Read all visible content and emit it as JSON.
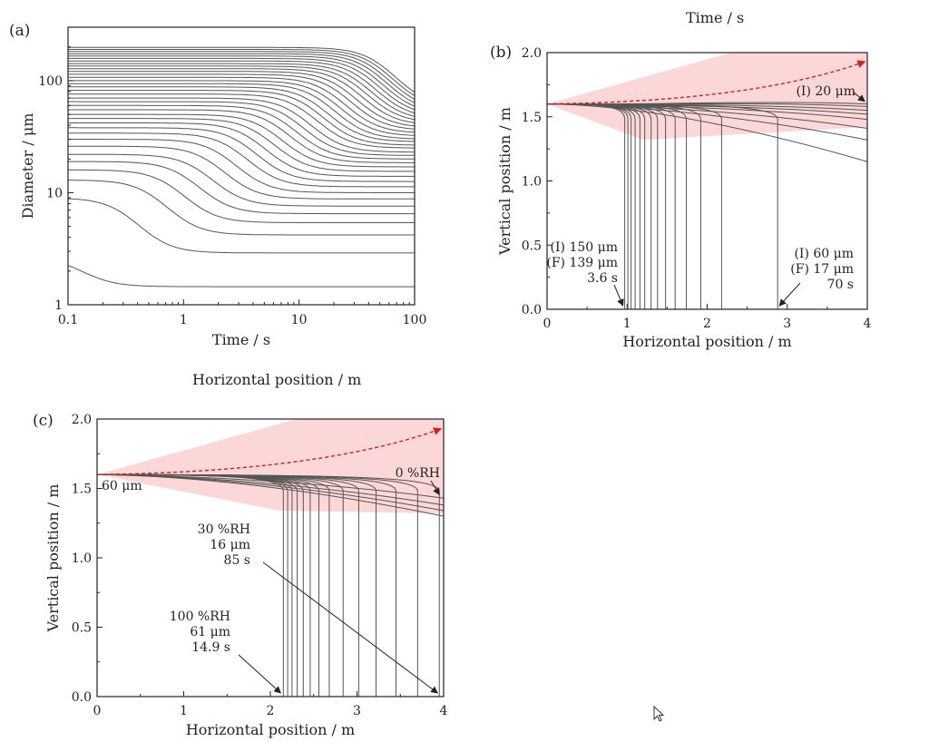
{
  "floating_labels": {
    "time": "Time / s",
    "horizontal": "Horizontal position / m"
  },
  "chart_data": [
    {
      "panel": "(a)",
      "type": "line",
      "xlabel": "Time / s",
      "ylabel": "Diameter / μm",
      "xscale": "log",
      "yscale": "log",
      "xlim": [
        0.1,
        100
      ],
      "ylim": [
        1,
        300
      ],
      "xticks": [
        "0.1",
        "1",
        "10",
        "100"
      ],
      "yticks": [
        "1",
        "10",
        "100"
      ],
      "series_note": "family of droplet diameter evolution curves",
      "series": [
        {
          "d0": 2.7,
          "dinf": 1.45,
          "t": 0.12
        },
        {
          "d0": 9,
          "dinf": 2.9,
          "t": 0.34
        },
        {
          "d0": 13,
          "dinf": 4.2,
          "t": 0.6
        },
        {
          "d0": 16,
          "dinf": 5.4,
          "t": 0.85
        },
        {
          "d0": 19,
          "dinf": 6.5,
          "t": 1.15
        },
        {
          "d0": 22,
          "dinf": 7.6,
          "t": 1.5
        },
        {
          "d0": 26,
          "dinf": 8.8,
          "t": 1.9
        },
        {
          "d0": 30,
          "dinf": 10,
          "t": 2.4
        },
        {
          "d0": 34,
          "dinf": 11.3,
          "t": 3.0
        },
        {
          "d0": 38,
          "dinf": 12.6,
          "t": 3.6
        },
        {
          "d0": 42,
          "dinf": 14,
          "t": 4.3
        },
        {
          "d0": 46,
          "dinf": 15.5,
          "t": 5.1
        },
        {
          "d0": 50,
          "dinf": 17,
          "t": 6.0
        },
        {
          "d0": 55,
          "dinf": 18.5,
          "t": 7.0
        },
        {
          "d0": 60,
          "dinf": 20,
          "t": 8.0
        },
        {
          "d0": 65,
          "dinf": 21.5,
          "t": 9.2
        },
        {
          "d0": 70,
          "dinf": 23,
          "t": 10.5
        },
        {
          "d0": 76,
          "dinf": 25,
          "t": 12
        },
        {
          "d0": 82,
          "dinf": 26.5,
          "t": 13.5
        },
        {
          "d0": 88,
          "dinf": 28.5,
          "t": 15
        },
        {
          "d0": 94,
          "dinf": 30,
          "t": 17
        },
        {
          "d0": 100,
          "dinf": 32,
          "t": 19
        },
        {
          "d0": 107,
          "dinf": 34,
          "t": 21
        },
        {
          "d0": 114,
          "dinf": 36,
          "t": 23.5
        },
        {
          "d0": 121,
          "dinf": 38,
          "t": 26
        },
        {
          "d0": 128,
          "dinf": 40,
          "t": 29
        },
        {
          "d0": 135,
          "dinf": 42,
          "t": 32
        },
        {
          "d0": 142,
          "dinf": 44,
          "t": 35
        },
        {
          "d0": 150,
          "dinf": 46,
          "t": 38
        },
        {
          "d0": 158,
          "dinf": 48,
          "t": 41
        },
        {
          "d0": 166,
          "dinf": 50,
          "t": 44
        },
        {
          "d0": 174,
          "dinf": 52,
          "t": 47
        },
        {
          "d0": 182,
          "dinf": 54,
          "t": 50
        },
        {
          "d0": 190,
          "dinf": 56,
          "t": 53
        },
        {
          "d0": 198,
          "dinf": 58,
          "t": 56
        }
      ]
    },
    {
      "panel": "(b)",
      "type": "line",
      "xlabel": "Horizontal position / m",
      "ylabel": "Vertical position / m",
      "xlim": [
        0,
        4
      ],
      "ylim": [
        0,
        2.0
      ],
      "xticks": [
        "0",
        "1",
        "2",
        "3",
        "4"
      ],
      "yticks": [
        "0.0",
        "0.5",
        "1.0",
        "1.5",
        "2.0"
      ],
      "start_height": 1.6,
      "landing_x": [
        0.97,
        1.01,
        1.05,
        1.1,
        1.16,
        1.22,
        1.3,
        1.38,
        1.48,
        1.6,
        1.74,
        1.92,
        2.18,
        2.88
      ],
      "curving_end_y": [
        1.6,
        1.58,
        1.55,
        1.52,
        1.48,
        1.41,
        1.32,
        1.15
      ],
      "annotations": [
        {
          "lines": [
            "(I) 20 μm"
          ],
          "x": 3.6,
          "y": 1.62
        },
        {
          "lines": [
            "(I) 150 μm",
            "(F) 139 μm",
            "3.6 s"
          ],
          "x": 0.97,
          "y": 0.0
        },
        {
          "lines": [
            "(I) 60 μm",
            "(F) 17 μm",
            "70 s"
          ],
          "x": 2.88,
          "y": 0.0
        }
      ]
    },
    {
      "panel": "(c)",
      "type": "line",
      "xlabel": "Horizontal position / m",
      "ylabel": "Vertical position / m",
      "xlim": [
        0,
        4
      ],
      "ylim": [
        0,
        2.0
      ],
      "xticks": [
        "0",
        "1",
        "2",
        "3",
        "4"
      ],
      "yticks": [
        "0.0",
        "0.5",
        "1.0",
        "1.5",
        "2.0"
      ],
      "start_height": 1.6,
      "landing_x": [
        2.15,
        2.2,
        2.25,
        2.31,
        2.38,
        2.46,
        2.56,
        2.68,
        2.84,
        3.02,
        3.22,
        3.45,
        3.7,
        3.95
      ],
      "curving_end_y": [
        1.43,
        1.38,
        1.34,
        1.3
      ],
      "annotations": [
        {
          "lines": [
            "60 μm"
          ],
          "x": 0.05,
          "y": 1.55
        },
        {
          "lines": [
            "0 %RH"
          ],
          "x": 3.95,
          "y": 1.43
        },
        {
          "lines": [
            "30 %RH",
            "16 μm",
            "85 s"
          ],
          "x": 3.95,
          "y": 0.0
        },
        {
          "lines": [
            "100 %RH",
            "61 μm",
            "14.9 s"
          ],
          "x": 2.15,
          "y": 0.0
        }
      ]
    }
  ]
}
